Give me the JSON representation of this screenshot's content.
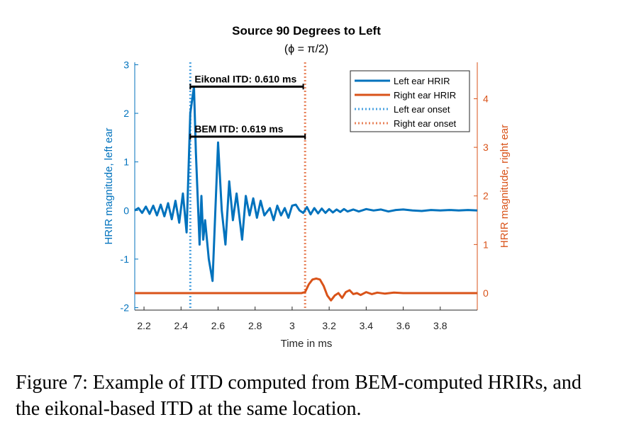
{
  "chart_data": {
    "type": "line",
    "title": "Source 90 Degrees to Left",
    "subtitle": "(ϕ = π/2)",
    "xlabel": "Time in ms",
    "ylabel_left": "HRIR magnitude, left ear",
    "ylabel_right": "HRIR magnitude, right ear",
    "xlim": [
      2.15,
      4.0
    ],
    "ylim_left": [
      -2.05,
      3.05
    ],
    "ylim_right": [
      -0.35,
      4.75
    ],
    "x_ticks": [
      2.2,
      2.4,
      2.6,
      2.8,
      3,
      3.2,
      3.4,
      3.6,
      3.8
    ],
    "x_tick_labels": [
      "2.2",
      "2.4",
      "2.6",
      "2.8",
      "3",
      "3.2",
      "3.4",
      "3.6",
      "3.8"
    ],
    "y_left_ticks": [
      -2,
      -1,
      0,
      1,
      2,
      3
    ],
    "y_left_tick_labels": [
      "-2",
      "-1",
      "0",
      "1",
      "2",
      "3"
    ],
    "y_right_ticks": [
      0,
      1,
      2,
      3,
      4
    ],
    "y_right_tick_labels": [
      "0",
      "1",
      "2",
      "3",
      "4"
    ],
    "grid": false,
    "legend_position": "top-right",
    "colors": {
      "left": "#0072BD",
      "right": "#D95319",
      "axis_right": "#D95319",
      "axis_left": "#0072BD"
    },
    "series": [
      {
        "name": "Left ear HRIR",
        "axis": "left",
        "x": [
          2.15,
          2.17,
          2.19,
          2.21,
          2.23,
          2.25,
          2.27,
          2.29,
          2.31,
          2.33,
          2.35,
          2.37,
          2.39,
          2.41,
          2.43,
          2.45,
          2.47,
          2.48,
          2.5,
          2.51,
          2.52,
          2.53,
          2.55,
          2.57,
          2.6,
          2.62,
          2.64,
          2.66,
          2.68,
          2.7,
          2.73,
          2.75,
          2.77,
          2.79,
          2.81,
          2.83,
          2.85,
          2.88,
          2.9,
          2.92,
          2.94,
          2.96,
          2.98,
          3.0,
          3.02,
          3.04,
          3.06,
          3.08,
          3.1,
          3.12,
          3.14,
          3.16,
          3.18,
          3.2,
          3.22,
          3.24,
          3.26,
          3.28,
          3.3,
          3.33,
          3.36,
          3.4,
          3.44,
          3.48,
          3.52,
          3.56,
          3.6,
          3.65,
          3.7,
          3.75,
          3.8,
          3.85,
          3.9,
          3.95,
          4.0
        ],
        "y": [
          0.0,
          0.05,
          -0.05,
          0.08,
          -0.07,
          0.1,
          -0.1,
          0.12,
          -0.12,
          0.15,
          -0.18,
          0.2,
          -0.25,
          0.35,
          -0.45,
          2.0,
          2.55,
          1.2,
          -0.7,
          0.3,
          -0.6,
          -0.2,
          -1.0,
          -1.45,
          1.4,
          0.0,
          -0.7,
          0.6,
          -0.2,
          0.35,
          -0.6,
          0.3,
          -0.1,
          0.25,
          -0.15,
          0.2,
          -0.1,
          0.05,
          -0.2,
          0.1,
          -0.1,
          0.05,
          -0.15,
          0.1,
          0.12,
          0.0,
          -0.05,
          0.07,
          -0.08,
          0.05,
          -0.06,
          0.04,
          -0.05,
          0.03,
          -0.04,
          0.02,
          -0.03,
          0.03,
          -0.02,
          0.02,
          -0.02,
          0.03,
          0.0,
          0.02,
          -0.02,
          0.01,
          0.02,
          0.0,
          -0.01,
          0.01,
          0.0,
          0.01,
          0.0,
          0.01,
          0.0
        ]
      },
      {
        "name": "Right ear HRIR",
        "axis": "right",
        "x": [
          2.15,
          2.3,
          2.5,
          2.7,
          2.9,
          3.0,
          3.05,
          3.07,
          3.09,
          3.11,
          3.13,
          3.15,
          3.17,
          3.19,
          3.21,
          3.23,
          3.25,
          3.27,
          3.29,
          3.31,
          3.33,
          3.35,
          3.37,
          3.4,
          3.43,
          3.46,
          3.5,
          3.55,
          3.6,
          3.7,
          3.8,
          3.9,
          4.0
        ],
        "y": [
          0.0,
          0.0,
          0.0,
          0.0,
          0.0,
          0.0,
          0.0,
          0.02,
          0.18,
          0.28,
          0.3,
          0.28,
          0.15,
          -0.05,
          -0.15,
          -0.05,
          0.0,
          -0.1,
          0.02,
          0.06,
          -0.02,
          0.0,
          -0.04,
          0.02,
          -0.02,
          0.01,
          -0.01,
          0.01,
          0.0,
          0.0,
          0.0,
          0.0,
          0.0
        ]
      },
      {
        "name": "Left ear onset",
        "axis": "left",
        "x": 2.45
      },
      {
        "name": "Right ear onset",
        "axis": "right",
        "x": 3.07
      }
    ],
    "annotations": [
      {
        "text": "Eikonal ITD: 0.610 ms",
        "x_start": 2.45,
        "x_end": 3.06,
        "y": 2.55,
        "axis": "left"
      },
      {
        "text": "BEM ITD: 0.619 ms",
        "x_start": 2.45,
        "x_end": 3.07,
        "y": 1.52,
        "axis": "left"
      }
    ]
  },
  "caption": "Figure 7: Example of ITD computed from BEM-computed HRIRs, and the eikonal-based ITD at the same location."
}
